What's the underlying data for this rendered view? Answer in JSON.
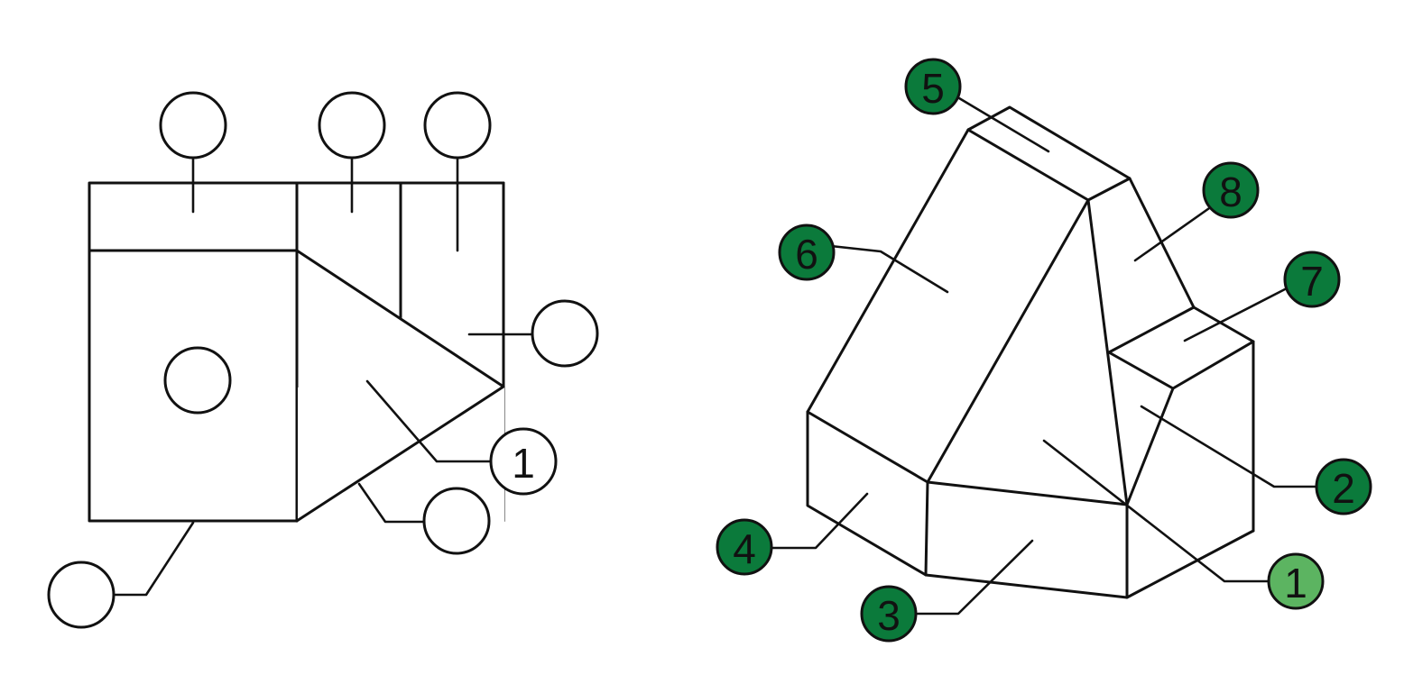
{
  "colors": {
    "line": "#111111",
    "empty_callout_fill": "#ffffff",
    "numbered_callout_fill": "#0b7a3b",
    "highlight_callout_fill": "#5cb461"
  },
  "orthographic_view": {
    "callouts": {
      "top_left": "",
      "top_middle": "",
      "top_right": "",
      "right": "",
      "center_left": "",
      "face_1": "1",
      "lower_diagonal": "",
      "bottom_left": ""
    }
  },
  "isometric_view": {
    "callouts": {
      "c1": "1",
      "c2": "2",
      "c3": "3",
      "c4": "4",
      "c5": "5",
      "c6": "6",
      "c7": "7",
      "c8": "8"
    }
  }
}
